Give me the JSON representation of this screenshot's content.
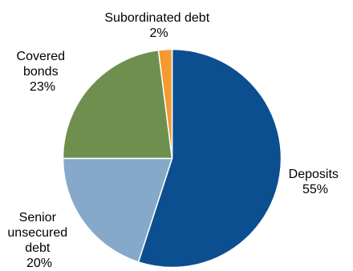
{
  "chart_data": {
    "type": "pie",
    "slices": [
      {
        "label": [
          "Deposits"
        ],
        "value": 55,
        "value_label": "55%",
        "color": "#0b4f91"
      },
      {
        "label": [
          "Senior",
          "unsecured",
          "debt"
        ],
        "value": 20,
        "value_label": "20%",
        "color": "#86a8c9"
      },
      {
        "label": [
          "Covered",
          "bonds"
        ],
        "value": 23,
        "value_label": "23%",
        "color": "#6f8f4e"
      },
      {
        "label": [
          "Subordinated debt"
        ],
        "value": 2,
        "value_label": "2%",
        "color": "#f39a31"
      }
    ],
    "start_angle_deg": 0,
    "direction": "clockwise",
    "slice_border_color": "#ffffff"
  }
}
